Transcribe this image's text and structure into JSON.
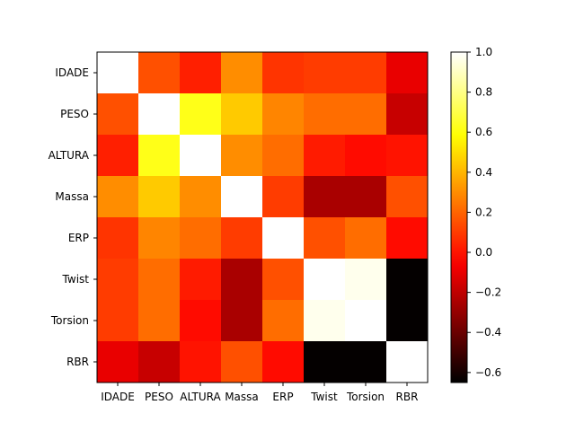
{
  "chart_data": {
    "type": "heatmap",
    "title": "",
    "xlabel": "",
    "ylabel": "",
    "x_categories": [
      "IDADE",
      "PESO",
      "ALTURA",
      "Massa",
      "ERP",
      "Twist",
      "Torsion",
      "RBR"
    ],
    "y_categories": [
      "IDADE",
      "PESO",
      "ALTURA",
      "Massa",
      "ERP",
      "Twist",
      "Torsion",
      "RBR"
    ],
    "matrix": [
      [
        1.0,
        0.15,
        0.03,
        0.3,
        0.08,
        0.1,
        0.1,
        -0.1
      ],
      [
        0.15,
        1.0,
        0.62,
        0.45,
        0.28,
        0.22,
        0.22,
        -0.18
      ],
      [
        0.03,
        0.62,
        1.0,
        0.3,
        0.22,
        0.02,
        -0.02,
        0.0
      ],
      [
        0.3,
        0.45,
        0.3,
        1.0,
        0.1,
        -0.25,
        -0.25,
        0.15
      ],
      [
        0.08,
        0.28,
        0.22,
        0.1,
        1.0,
        0.15,
        0.22,
        -0.02
      ],
      [
        0.1,
        0.22,
        0.02,
        -0.25,
        0.15,
        1.0,
        0.97,
        -0.64
      ],
      [
        0.1,
        0.22,
        -0.02,
        -0.25,
        0.22,
        0.97,
        1.0,
        -0.64
      ],
      [
        -0.1,
        -0.18,
        0.0,
        0.15,
        -0.02,
        -0.64,
        -0.64,
        1.0
      ]
    ],
    "colormap": "hot",
    "vmin": -0.65,
    "vmax": 1.0,
    "colorbar_ticks": [
      1.0,
      0.8,
      0.6,
      0.4,
      0.2,
      0.0,
      -0.2,
      -0.4,
      -0.6
    ],
    "colorbar_tick_labels": [
      "1.0",
      "0.8",
      "0.6",
      "0.4",
      "0.2",
      "0.0",
      "−0.2",
      "−0.4",
      "−0.6"
    ],
    "grid": false
  }
}
